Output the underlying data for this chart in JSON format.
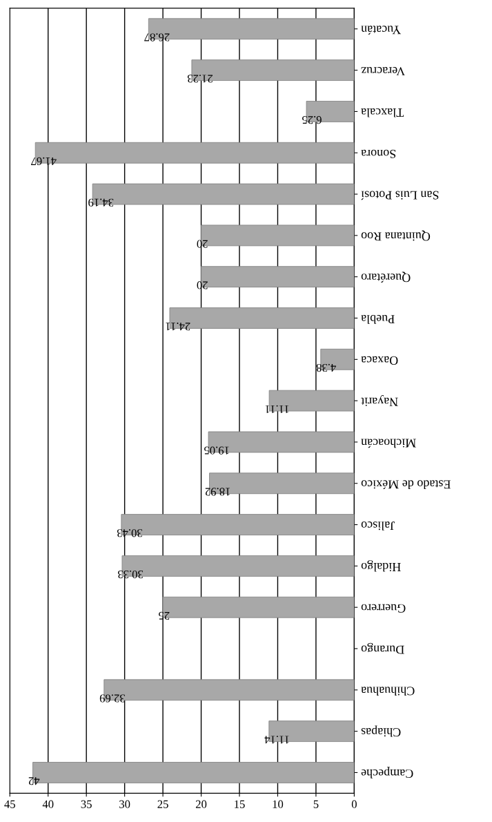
{
  "chart_data": {
    "type": "bar",
    "orientation": "horizontal",
    "categories": [
      "Yucatán",
      "Veracruz",
      "Tlaxcala",
      "Sonora",
      "San Luis Potosí",
      "Quintana Roo",
      "Querétaro",
      "Puebla",
      "Oaxaca",
      "Nayarit",
      "Michoacán",
      "Estado de México",
      "Jalisco",
      "Hidalgo",
      "Guerrero",
      "Durango",
      "Chihuahua",
      "Chiapas",
      "Campeche"
    ],
    "values": [
      26.87,
      21.23,
      6.25,
      41.67,
      34.19,
      20,
      20,
      24.11,
      4.38,
      11.11,
      19.05,
      18.92,
      30.43,
      30.33,
      25,
      null,
      32.69,
      11.14,
      42
    ],
    "color": "#a8a8a8",
    "data_labels": true,
    "xlim": [
      45,
      0
    ],
    "xticks": [
      45,
      40,
      35,
      30,
      25,
      20,
      15,
      10,
      5,
      0
    ],
    "grid": "x"
  }
}
